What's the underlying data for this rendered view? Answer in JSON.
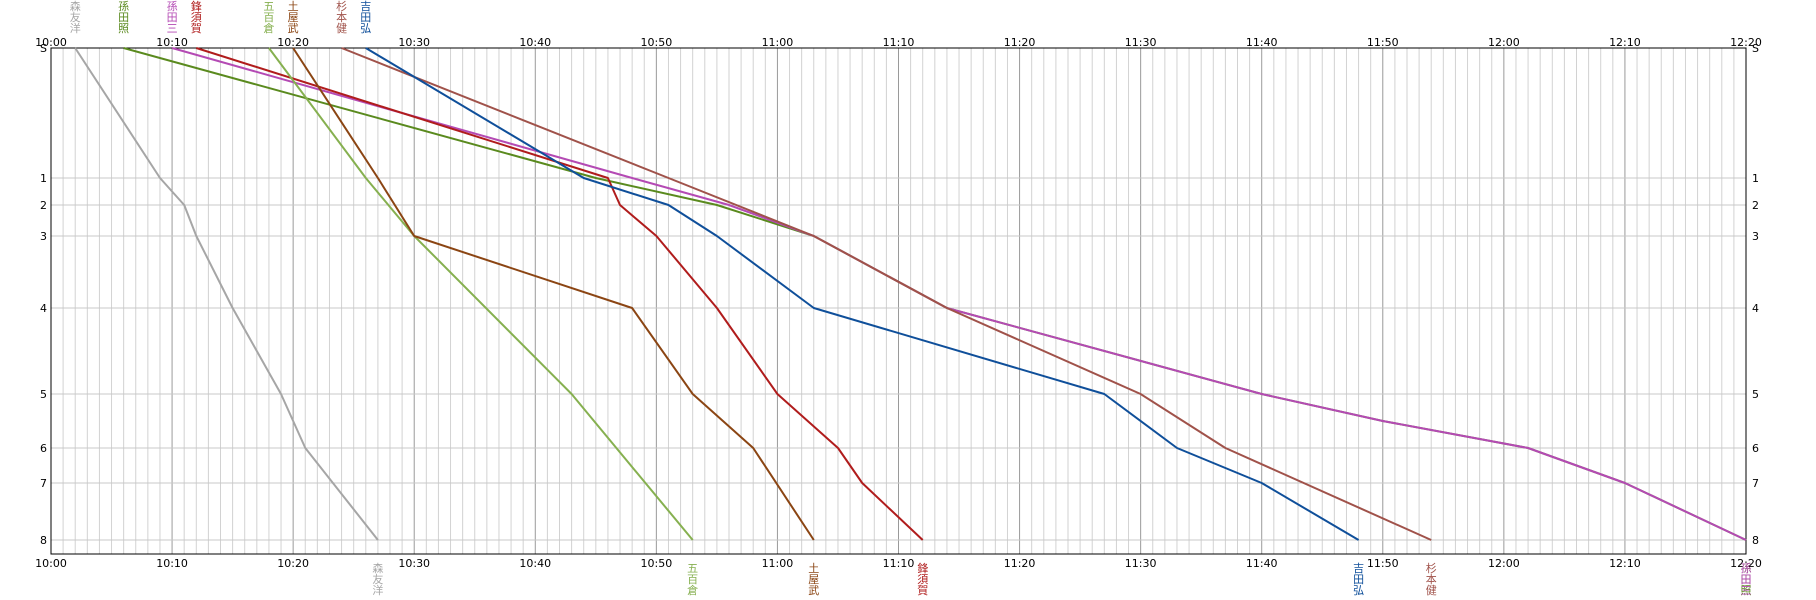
{
  "chart_data": {
    "type": "line",
    "title": "",
    "xlabel": "",
    "ylabel": "",
    "x_ticks": [
      "10:00",
      "10:10",
      "10:20",
      "10:30",
      "10:40",
      "10:50",
      "11:00",
      "11:10",
      "11:20",
      "11:30",
      "11:40",
      "11:50",
      "12:00",
      "12:10",
      "12:20"
    ],
    "y_ticks": [
      "S",
      "1",
      "2",
      "3",
      "4",
      "5",
      "6",
      "7",
      "8"
    ],
    "xlim": [
      "10:00",
      "12:20"
    ],
    "ylim": [
      "S",
      "8"
    ],
    "grid": true,
    "series": [
      {
        "name": "森友洋",
        "color": "#a6a6a6",
        "label_top": "森友洋",
        "label_bottom": "森友洋",
        "points": [
          [
            "10:02",
            "S"
          ],
          [
            "10:09",
            "1"
          ],
          [
            "10:11",
            "2"
          ],
          [
            "10:12",
            "3"
          ],
          [
            "10:15",
            "4"
          ],
          [
            "10:19",
            "5"
          ],
          [
            "10:21",
            "6"
          ],
          [
            "10:27",
            "8"
          ]
        ]
      },
      {
        "name": "孫田照",
        "color": "#5a8a1e",
        "label_top": "孫田照",
        "label_bottom": "孫田照",
        "points": [
          [
            "10:06",
            "S"
          ],
          [
            "10:45",
            "1"
          ],
          [
            "10:55",
            "2"
          ],
          [
            "11:03",
            "3"
          ],
          [
            "11:14",
            "4"
          ],
          [
            "11:40",
            "5"
          ],
          [
            "11:50",
            "5.5"
          ],
          [
            "12:02",
            "6"
          ],
          [
            "12:10",
            "7"
          ],
          [
            "12:20",
            "8"
          ]
        ]
      },
      {
        "name": "孫田三",
        "color": "#b44ab4",
        "label_top": "孫田三",
        "label_bottom": "孫田三",
        "points": [
          [
            "10:10",
            "S"
          ],
          [
            "10:48",
            "1"
          ],
          [
            "10:56",
            "2"
          ],
          [
            "11:03",
            "3"
          ],
          [
            "11:14",
            "4"
          ],
          [
            "11:40",
            "5"
          ],
          [
            "11:50",
            "5.5"
          ],
          [
            "12:02",
            "6"
          ],
          [
            "12:10",
            "7"
          ],
          [
            "12:20",
            "8"
          ]
        ]
      },
      {
        "name": "鋒須賀",
        "color": "#b01c1c",
        "label_top": "鋒須賀",
        "label_bottom": "鋒須賀",
        "points": [
          [
            "10:12",
            "S"
          ],
          [
            "10:46",
            "1"
          ],
          [
            "10:47",
            "2"
          ],
          [
            "10:50",
            "3"
          ],
          [
            "10:55",
            "4"
          ],
          [
            "11:00",
            "5"
          ],
          [
            "11:05",
            "6"
          ],
          [
            "11:07",
            "7"
          ],
          [
            "11:12",
            "8"
          ]
        ]
      },
      {
        "name": "五百倉",
        "color": "#86b050",
        "label_top": "五百倉",
        "label_bottom": "五百倉",
        "points": [
          [
            "10:18",
            "S"
          ],
          [
            "10:26",
            "1"
          ],
          [
            "10:30",
            "3"
          ],
          [
            "10:43",
            "5"
          ],
          [
            "10:53",
            "8"
          ]
        ]
      },
      {
        "name": "土屋武",
        "color": "#8b4513",
        "label_top": "土屋武",
        "label_bottom": "土屋武",
        "points": [
          [
            "10:20",
            "S"
          ],
          [
            "10:27",
            "1"
          ],
          [
            "10:30",
            "3"
          ],
          [
            "10:48",
            "4"
          ],
          [
            "10:53",
            "5"
          ],
          [
            "10:58",
            "6"
          ],
          [
            "11:03",
            "8"
          ]
        ]
      },
      {
        "name": "杉本健",
        "color": "#a0524a",
        "label_top": "杉本健",
        "label_bottom": "杉本健",
        "points": [
          [
            "10:24",
            "S"
          ],
          [
            "10:51",
            "1"
          ],
          [
            "11:03",
            "3"
          ],
          [
            "11:14",
            "4"
          ],
          [
            "11:30",
            "5"
          ],
          [
            "11:37",
            "6"
          ],
          [
            "11:54",
            "8"
          ]
        ]
      },
      {
        "name": "吉田弘",
        "color": "#0f4f9a",
        "label_top": "吉田弘",
        "label_bottom": "吉田弘",
        "points": [
          [
            "10:26",
            "S"
          ],
          [
            "10:44",
            "1"
          ],
          [
            "10:51",
            "2"
          ],
          [
            "10:55",
            "3"
          ],
          [
            "11:03",
            "4"
          ],
          [
            "11:27",
            "5"
          ],
          [
            "11:33",
            "6"
          ],
          [
            "11:40",
            "7"
          ],
          [
            "11:48",
            "8"
          ]
        ]
      }
    ]
  }
}
